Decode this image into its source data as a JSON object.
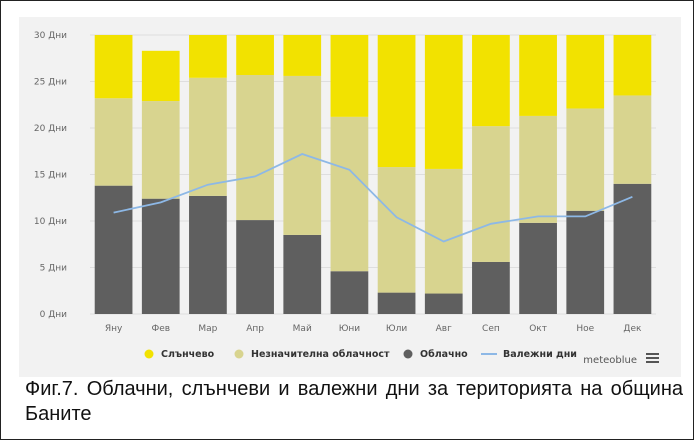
{
  "caption": "Фиг.7. Облачни, слънчеви и валежни дни за територията на община Баните",
  "brand": "meteoblue",
  "colors": {
    "sunny": "#f2e200",
    "partly": "#d8d48f",
    "cloudy": "#5f5f5f",
    "precip": "#8db8e6",
    "panel": "#f2f2f2"
  },
  "chart_data": {
    "type": "bar",
    "stacked": true,
    "categories": [
      "Яну",
      "Фев",
      "Мар",
      "Апр",
      "Май",
      "Юни",
      "Юли",
      "Авг",
      "Сеп",
      "Окт",
      "Ное",
      "Дек"
    ],
    "y_ticks": [
      "0 Дни",
      "5 Дни",
      "10 Дни",
      "15 Дни",
      "20 Дни",
      "25 Дни",
      "30 Дни"
    ],
    "ylim": [
      0,
      30
    ],
    "grid": true,
    "legend_position": "bottom",
    "series": [
      {
        "name": "Облачно",
        "type": "bar",
        "color": "#5f5f5f",
        "values": [
          13.8,
          12.4,
          12.7,
          10.1,
          8.5,
          4.6,
          2.3,
          2.2,
          5.6,
          9.8,
          11.1,
          14.0
        ]
      },
      {
        "name": "Незначителна облачност",
        "type": "bar",
        "color": "#d8d48f",
        "values": [
          9.4,
          10.5,
          12.7,
          15.6,
          17.1,
          16.6,
          13.5,
          13.4,
          14.6,
          11.5,
          11.0,
          9.5
        ]
      },
      {
        "name": "Слънчево",
        "type": "bar",
        "color": "#f2e200",
        "values": [
          6.8,
          5.4,
          4.6,
          4.3,
          4.4,
          8.8,
          14.2,
          14.4,
          9.8,
          8.7,
          7.9,
          6.5
        ]
      },
      {
        "name": "Валежни дни",
        "type": "line",
        "color": "#8db8e6",
        "values": [
          10.9,
          12.0,
          13.9,
          14.8,
          17.2,
          15.5,
          10.4,
          7.8,
          9.7,
          10.5,
          10.5,
          12.6
        ]
      }
    ],
    "legend": [
      {
        "name": "Слънчево",
        "color": "#f2e200",
        "marker": "dot"
      },
      {
        "name": "Незначителна облачност",
        "color": "#d8d48f",
        "marker": "dot"
      },
      {
        "name": "Облачно",
        "color": "#5f5f5f",
        "marker": "dot"
      },
      {
        "name": "Валежни дни",
        "color": "#8db8e6",
        "marker": "line"
      }
    ]
  }
}
